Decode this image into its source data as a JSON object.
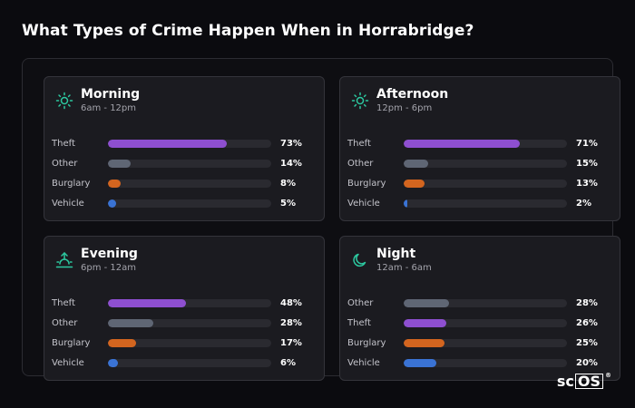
{
  "title": "What Types of Crime Happen When in Horrabridge?",
  "colors": {
    "Theft": "#8e4fd0",
    "Other": "#5f6674",
    "Burglary": "#d3651f",
    "Vehicle": "#3a73d4",
    "icon": "#2cc9a0"
  },
  "cards": [
    {
      "title": "Morning",
      "subtitle": "6am - 12pm",
      "icon": "sun-icon",
      "rows": [
        {
          "label": "Theft",
          "value": "73%",
          "pct": 73
        },
        {
          "label": "Other",
          "value": "14%",
          "pct": 14
        },
        {
          "label": "Burglary",
          "value": "8%",
          "pct": 8
        },
        {
          "label": "Vehicle",
          "value": "5%",
          "pct": 5
        }
      ]
    },
    {
      "title": "Afternoon",
      "subtitle": "12pm - 6pm",
      "icon": "sun-icon",
      "rows": [
        {
          "label": "Theft",
          "value": "71%",
          "pct": 71
        },
        {
          "label": "Other",
          "value": "15%",
          "pct": 15
        },
        {
          "label": "Burglary",
          "value": "13%",
          "pct": 13
        },
        {
          "label": "Vehicle",
          "value": "2%",
          "pct": 2
        }
      ]
    },
    {
      "title": "Evening",
      "subtitle": "6pm - 12am",
      "icon": "sunset-icon",
      "rows": [
        {
          "label": "Theft",
          "value": "48%",
          "pct": 48
        },
        {
          "label": "Other",
          "value": "28%",
          "pct": 28
        },
        {
          "label": "Burglary",
          "value": "17%",
          "pct": 17
        },
        {
          "label": "Vehicle",
          "value": "6%",
          "pct": 6
        }
      ]
    },
    {
      "title": "Night",
      "subtitle": "12am - 6am",
      "icon": "moon-icon",
      "rows": [
        {
          "label": "Other",
          "value": "28%",
          "pct": 28
        },
        {
          "label": "Theft",
          "value": "26%",
          "pct": 26
        },
        {
          "label": "Burglary",
          "value": "25%",
          "pct": 25
        },
        {
          "label": "Vehicle",
          "value": "20%",
          "pct": 20
        }
      ]
    }
  ],
  "brand": {
    "prefix": "sc",
    "boxed": "OS",
    "mark": "®"
  }
}
